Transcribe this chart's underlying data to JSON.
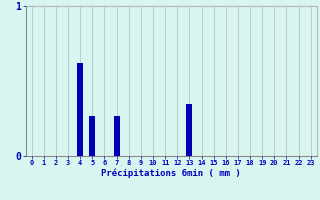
{
  "hours": [
    0,
    1,
    2,
    3,
    4,
    5,
    6,
    7,
    8,
    9,
    10,
    11,
    12,
    13,
    14,
    15,
    16,
    17,
    18,
    19,
    20,
    21,
    22,
    23
  ],
  "values": [
    0,
    0,
    0,
    0,
    0.62,
    0.27,
    0,
    0.27,
    0,
    0,
    0,
    0,
    0,
    0.35,
    0,
    0,
    0,
    0,
    0,
    0,
    0,
    0,
    0,
    0
  ],
  "bar_color": "#0000bb",
  "background_color": "#d8f5f0",
  "plot_area_color": "#d8f5f0",
  "grid_color": "#b0b8b8",
  "xlabel": "Précipitations 6min ( mm )",
  "xlabel_color": "#0000bb",
  "tick_color": "#0000bb",
  "ylim": [
    0,
    1.0
  ],
  "yticks": [
    0,
    1
  ],
  "xlim": [
    -0.5,
    23.5
  ],
  "bar_width": 0.5
}
